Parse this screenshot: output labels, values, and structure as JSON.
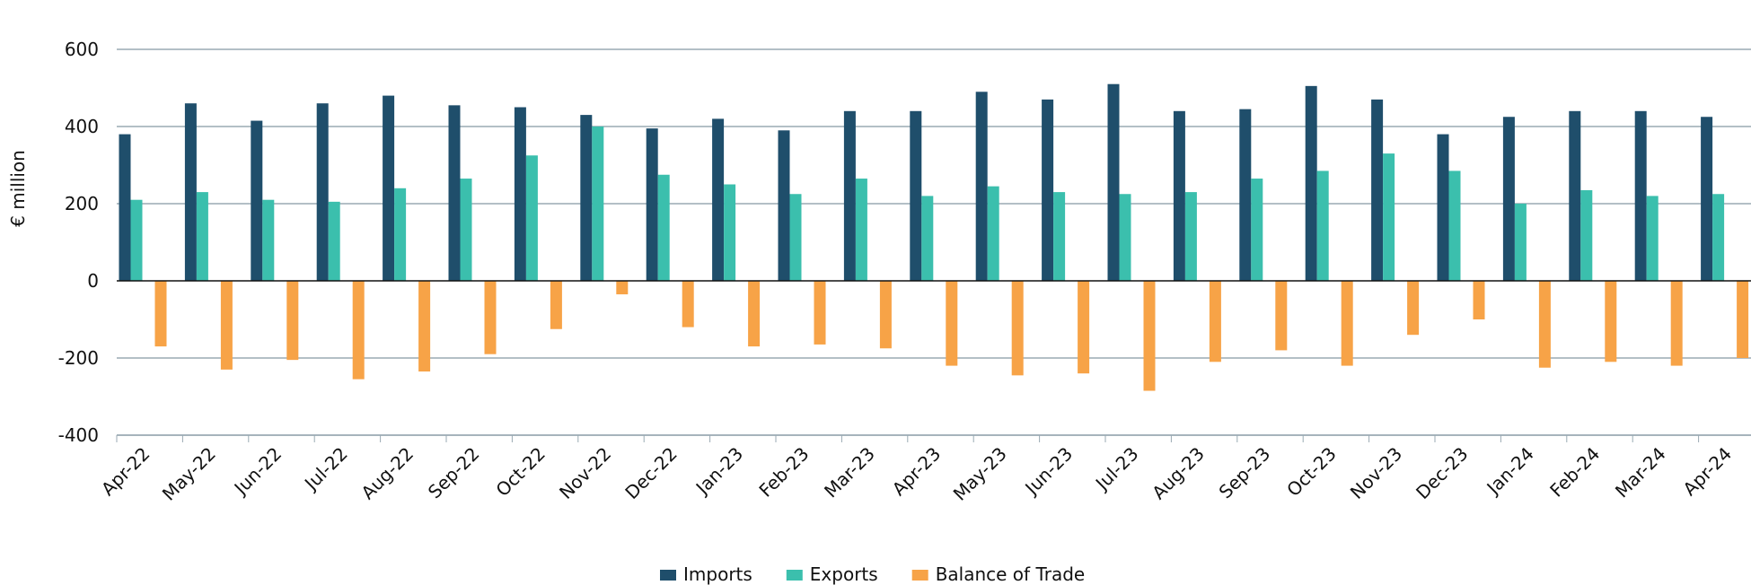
{
  "chart_data": {
    "type": "bar",
    "ylabel": "€ million",
    "ylim": [
      -400,
      600
    ],
    "yticks": [
      600,
      400,
      200,
      0,
      -200,
      -400
    ],
    "grid": true,
    "legend_position": "bottom",
    "categories": [
      "Apr-22",
      "May-22",
      "Jun-22",
      "Jul-22",
      "Aug-22",
      "Sep-22",
      "Oct-22",
      "Nov-22",
      "Dec-22",
      "Jan-23",
      "Feb-23",
      "Mar-23",
      "Apr-23",
      "May-23",
      "Jun-23",
      "Jul-23",
      "Aug-23",
      "Sep-23",
      "Oct-23",
      "Nov-23",
      "Dec-23",
      "Jan-24",
      "Feb-24",
      "Mar-24",
      "Apr-24"
    ],
    "series": [
      {
        "name": "Imports",
        "color": "#1f4e6b",
        "values": [
          380,
          460,
          415,
          460,
          480,
          455,
          450,
          430,
          395,
          420,
          390,
          440,
          440,
          490,
          470,
          510,
          440,
          445,
          505,
          470,
          380,
          425,
          440,
          440,
          425
        ]
      },
      {
        "name": "Exports",
        "color": "#3bbfad",
        "values": [
          210,
          230,
          210,
          205,
          240,
          265,
          325,
          400,
          275,
          250,
          225,
          265,
          220,
          245,
          230,
          225,
          230,
          265,
          285,
          330,
          285,
          200,
          235,
          220,
          225
        ]
      },
      {
        "name": "Balance of Trade",
        "color": "#f7a347",
        "values": [
          -170,
          -230,
          -205,
          -255,
          -235,
          -190,
          -125,
          -35,
          -120,
          -170,
          -165,
          -175,
          -220,
          -245,
          -240,
          -285,
          -210,
          -180,
          -220,
          -140,
          -100,
          -225,
          -210,
          -220,
          -200
        ]
      }
    ]
  }
}
